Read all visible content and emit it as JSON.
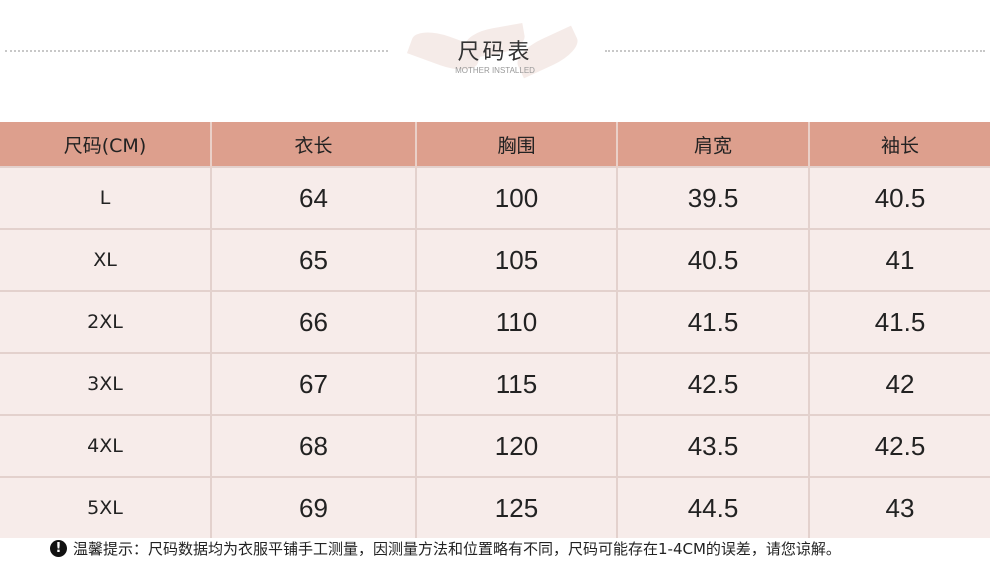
{
  "header": {
    "title": "尺码表",
    "subtitle": "MOTHER INSTALLED"
  },
  "table": {
    "columns": [
      "尺码(CM)",
      "衣长",
      "胸围",
      "肩宽",
      "袖长"
    ],
    "rows": [
      [
        "L",
        "64",
        "100",
        "39.5",
        "40.5"
      ],
      [
        "XL",
        "65",
        "105",
        "40.5",
        "41"
      ],
      [
        "2XL",
        "66",
        "110",
        "41.5",
        "41.5"
      ],
      [
        "3XL",
        "67",
        "115",
        "42.5",
        "42"
      ],
      [
        "4XL",
        "68",
        "120",
        "43.5",
        "42.5"
      ],
      [
        "5XL",
        "69",
        "125",
        "44.5",
        "43"
      ]
    ]
  },
  "note": {
    "icon": "exclamation-circle-icon",
    "text": "温馨提示：尺码数据均为衣服平铺手工测量，因测量方法和位置略有不同，尺码可能存在1-4CM的误差，请您谅解。"
  },
  "colors": {
    "header_bg": "#dd9f8d",
    "row_bg": "#f7ecea"
  }
}
